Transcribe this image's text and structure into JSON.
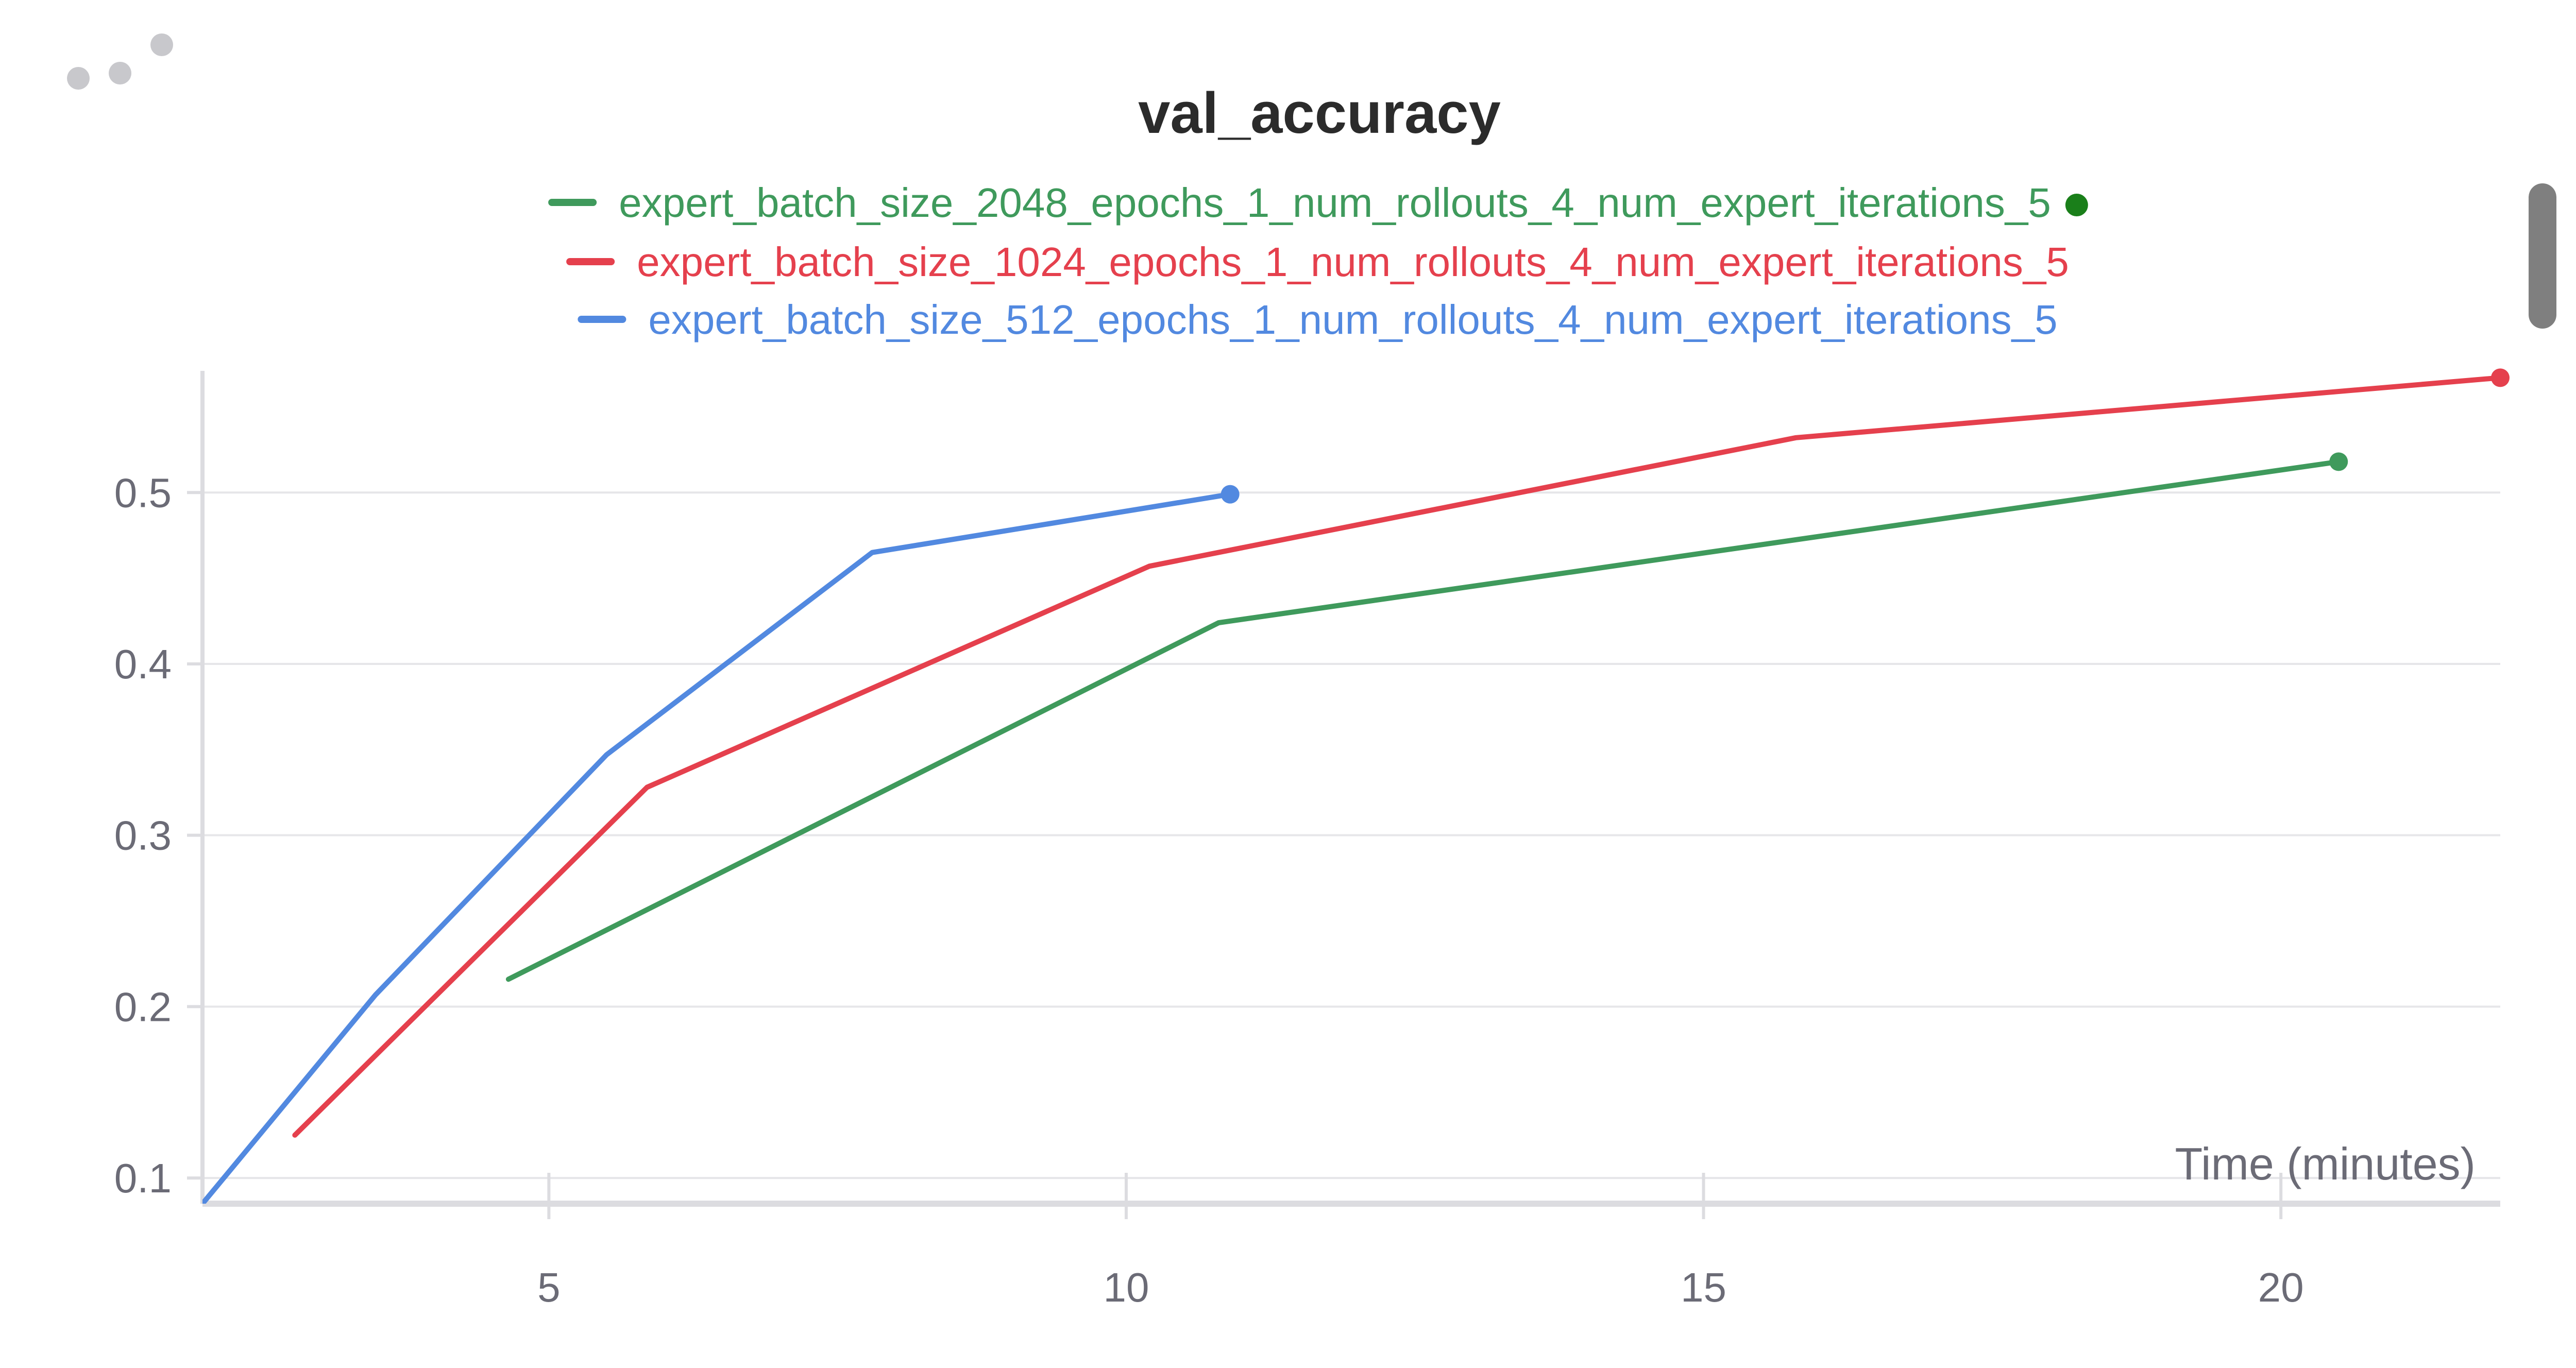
{
  "panel": {
    "menu_icon": "more-dots-icon",
    "scroll_icon": "scrollbar-thumb"
  },
  "chart_data": {
    "type": "line",
    "title": "val_accuracy",
    "xlabel": "Time (minutes)",
    "ylabel": "",
    "xlim": [
      2.0,
      21.9
    ],
    "ylim": [
      0.085,
      0.565
    ],
    "xticks": [
      5,
      10,
      15,
      20
    ],
    "xtick_labels": [
      "5",
      "10",
      "15",
      "20"
    ],
    "yticks": [
      0.1,
      0.2,
      0.3,
      0.4,
      0.5
    ],
    "ytick_labels": [
      "0.1",
      "0.2",
      "0.3",
      "0.4",
      "0.5"
    ],
    "grid": true,
    "legend_position": "top-center",
    "series": [
      {
        "name": "expert_batch_size_2048_epochs_1_num_rollouts_4_num_expert_iterations_5",
        "color": "#3f9a5c",
        "legend_dot_color": "#1a7f1a",
        "x": [
          4.65,
          10.8,
          20.5
        ],
        "y": [
          0.216,
          0.424,
          0.518
        ]
      },
      {
        "name": "expert_batch_size_1024_epochs_1_num_rollouts_4_num_expert_iterations_5",
        "color": "#e5404d",
        "x": [
          2.8,
          5.85,
          10.2,
          15.8,
          21.9
        ],
        "y": [
          0.125,
          0.328,
          0.457,
          0.532,
          0.567
        ]
      },
      {
        "name": "expert_batch_size_512_epochs_1_num_rollouts_4_num_expert_iterations_5",
        "color": "#5289e0",
        "x": [
          2.0,
          3.5,
          5.5,
          7.8,
          10.9
        ],
        "y": [
          0.085,
          0.207,
          0.347,
          0.465,
          0.499
        ]
      }
    ]
  }
}
